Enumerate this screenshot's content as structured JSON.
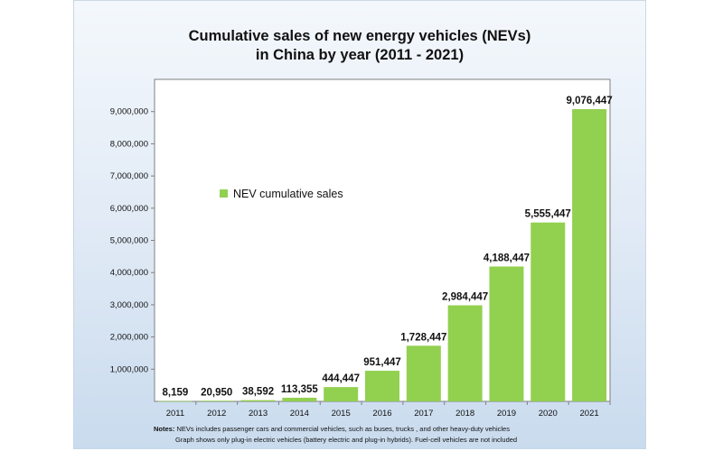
{
  "title_line1": "Cumulative sales of new energy vehicles (NEVs)",
  "title_line2": "in China by year (2011 - 2021)",
  "notes_label": "Notes:",
  "note_line1": "NEVs includes passenger cars and commercial vehicles, such as buses, trucks , and other heavy-duty vehicles",
  "note_line2": "Graph shows only plug-in electric vehicles (battery electric and plug-in hybrids). Fuel-cell vehicles are not included",
  "colors": {
    "bar": "#92d050",
    "frame_bg": "#dfe9f5"
  },
  "chart_data": {
    "type": "bar",
    "categories": [
      "2011",
      "2012",
      "2013",
      "2014",
      "2015",
      "2016",
      "2017",
      "2018",
      "2019",
      "2020",
      "2021"
    ],
    "series": [
      {
        "name": "NEV cumulative sales",
        "values": [
          8159,
          20950,
          38592,
          113355,
          444447,
          951447,
          1728447,
          2984447,
          4188447,
          5555447,
          9076447
        ]
      }
    ],
    "data_labels": [
      "8,159",
      "20,950",
      "38,592",
      "113,355",
      "444,447",
      "951,447",
      "1,728,447",
      "2,984,447",
      "4,188,447",
      "5,555,447",
      "9,076,447"
    ],
    "yticks": [
      "1,000,000",
      "2,000,000",
      "3,000,000",
      "4,000,000",
      "5,000,000",
      "6,000,000",
      "7,000,000",
      "8,000,000",
      "9,000,000"
    ],
    "ylim": [
      0,
      10000000
    ],
    "legend_position": "upper-left",
    "grid": false
  }
}
